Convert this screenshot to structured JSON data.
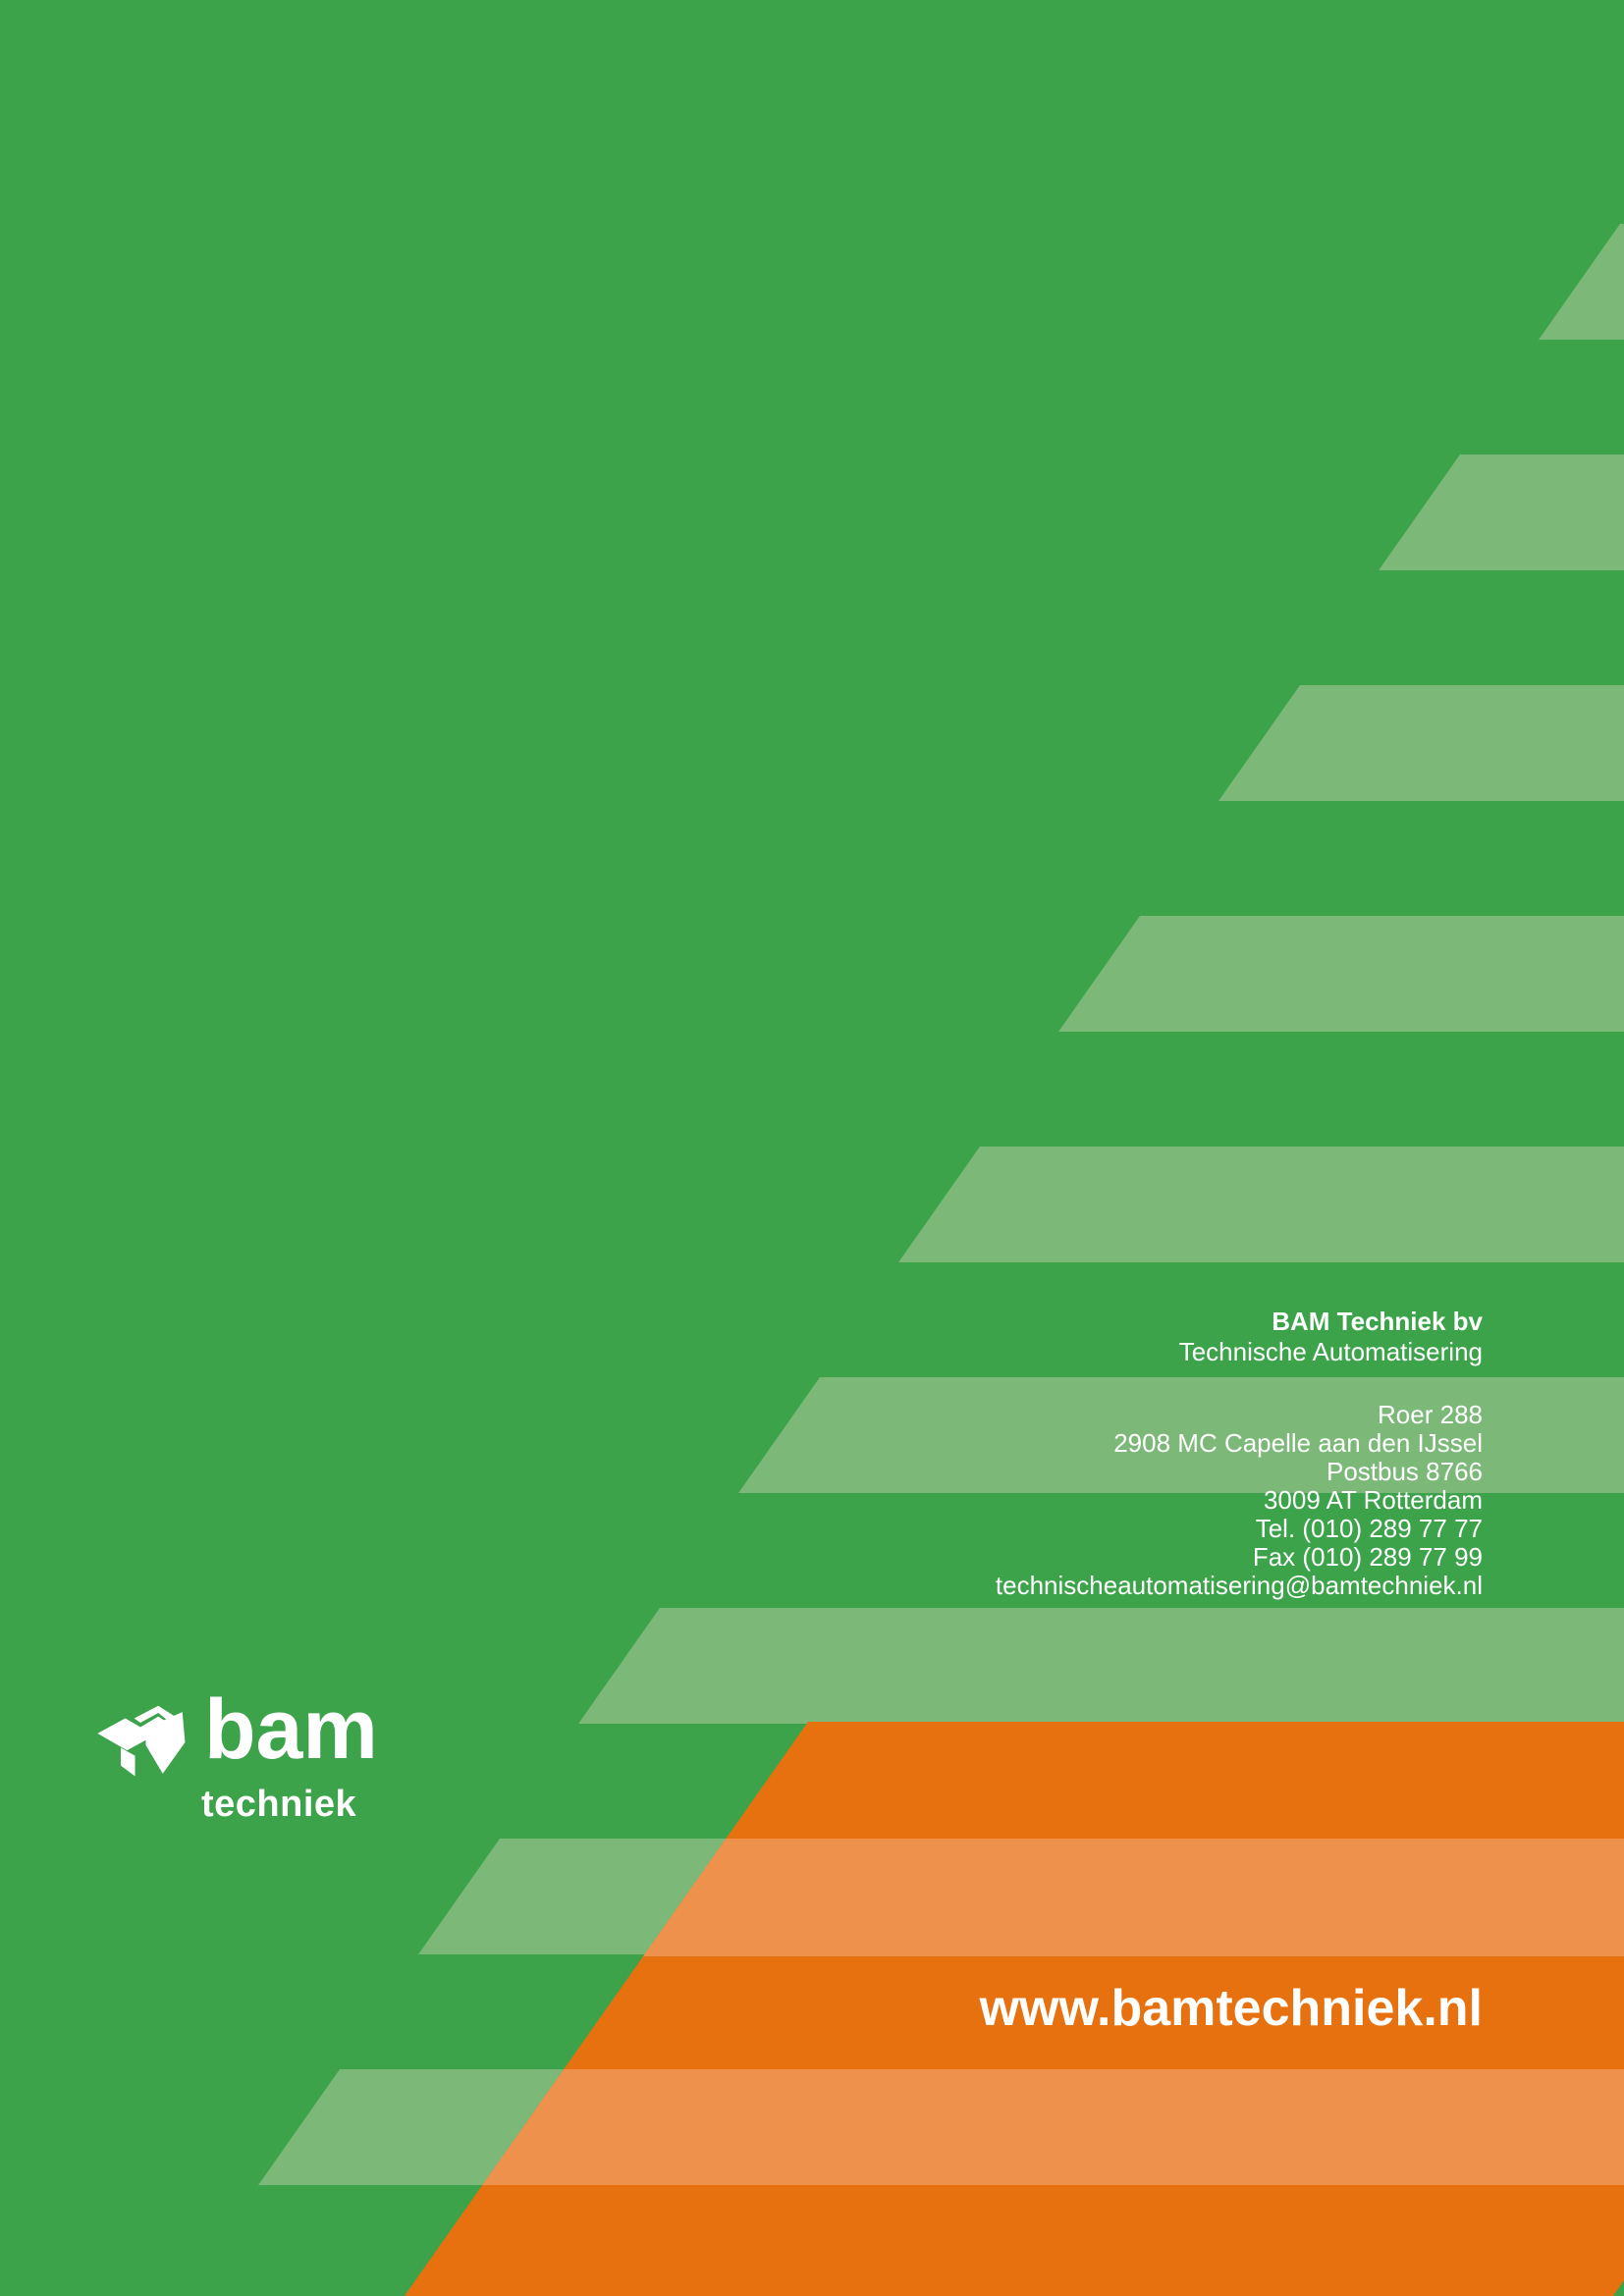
{
  "page": {
    "type": "brochure back cover"
  },
  "colors": {
    "green": "#3CA34A",
    "green_light": "#7CB979",
    "orange": "#E7700F",
    "orange_light": "#EE914D",
    "text": "#FFFFFF"
  },
  "company": {
    "name": "BAM Techniek bv",
    "department": "Technische Automatisering"
  },
  "contact": {
    "address": [
      "Roer 288",
      "2908 MC Capelle aan den IJssel",
      "Postbus 8766",
      "3009 AT Rotterdam",
      "Tel. (010) 289 77 77",
      "Fax (010) 289 77 99",
      "technischeautomatisering@bamtechniek.nl"
    ]
  },
  "website": {
    "url": "www.bamtechniek.nl"
  },
  "logo": {
    "brand": "bam",
    "division": "techniek",
    "mark": "bam-chevron-mark"
  }
}
